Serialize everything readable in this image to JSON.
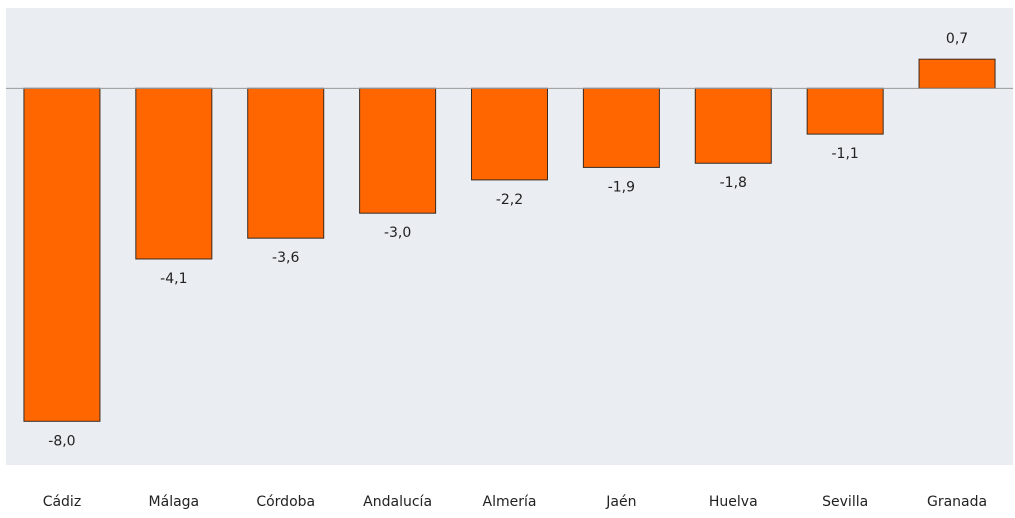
{
  "chart_data": {
    "type": "bar",
    "categories": [
      "Cádiz",
      "Málaga",
      "Córdoba",
      "Andalucía",
      "Almería",
      "Jaén",
      "Huelva",
      "Sevilla",
      "Granada"
    ],
    "values": [
      -8.0,
      -4.1,
      -3.6,
      -3.0,
      -2.2,
      -1.9,
      -1.8,
      -1.1,
      0.7
    ],
    "value_labels": [
      "-8,0",
      "-4,1",
      "-3,6",
      "-3,0",
      "-2,2",
      "-1,9",
      "-1,8",
      "-1,1",
      "0,7"
    ],
    "color": "#ff6600",
    "ylim": [
      -9.05,
      1.93
    ]
  }
}
